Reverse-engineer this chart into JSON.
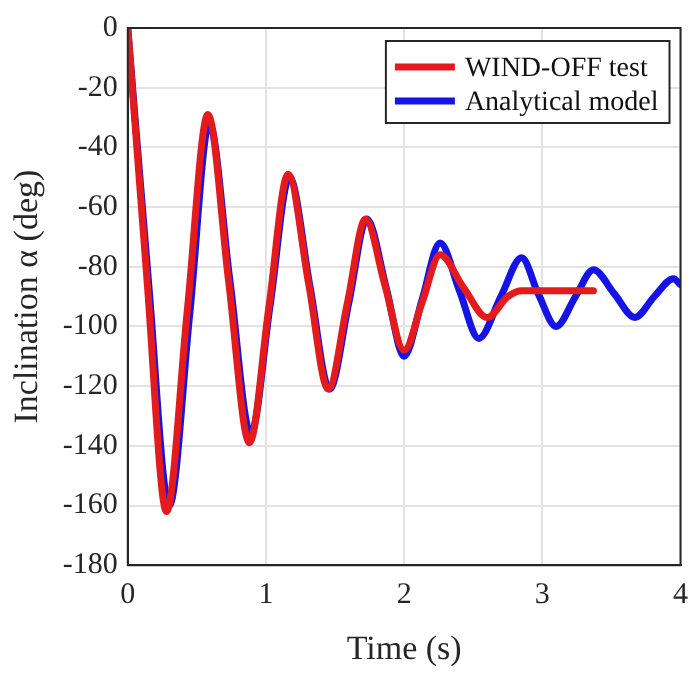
{
  "chart_data": {
    "type": "line",
    "xlabel": "Time (s)",
    "ylabel": "Inclination α (deg)",
    "xlim": [
      0,
      4
    ],
    "xticks": [
      0,
      1,
      2,
      3,
      4
    ],
    "ylim": [
      -180,
      0
    ],
    "yticks": [
      -180,
      -160,
      -140,
      -120,
      -100,
      -80,
      -60,
      -40,
      -20,
      0
    ],
    "grid": true,
    "legend": "top right",
    "marker": "none",
    "line_style": "solid",
    "series": [
      {
        "name": "WIND-OFF test",
        "color": "#e41a1c",
        "x": [
          0,
          0.14,
          0.28,
          0.43,
          0.58,
          0.73,
          0.88,
          1.02,
          1.16,
          1.31,
          1.45,
          1.59,
          1.72,
          1.86,
          2.0,
          2.13,
          2.26,
          2.43,
          2.6,
          2.75,
          2.85,
          3.37
        ],
        "values": [
          0,
          -85,
          -162,
          -95,
          -29,
          -85,
          -139,
          -94,
          -49,
          -86,
          -121,
          -92,
          -64,
          -86,
          -108,
          -92,
          -76,
          -87,
          -97,
          -90,
          -88,
          -88
        ]
      },
      {
        "name": "Analytical model",
        "color": "#1414e6",
        "x": [
          0,
          0.15,
          0.3,
          0.45,
          0.59,
          0.74,
          0.89,
          1.03,
          1.17,
          1.32,
          1.46,
          1.6,
          1.73,
          1.87,
          2.0,
          2.13,
          2.26,
          2.4,
          2.54,
          2.7,
          2.85,
          2.97,
          3.1,
          3.24,
          3.37,
          3.52,
          3.67,
          3.81,
          3.95,
          4
        ],
        "values": [
          0,
          -85,
          -160,
          -95,
          -32,
          -85,
          -136,
          -93,
          -50,
          -87,
          -121,
          -92,
          -64,
          -87,
          -110,
          -91,
          -72,
          -88,
          -104,
          -90,
          -77,
          -89,
          -100,
          -90,
          -81,
          -89,
          -97,
          -90,
          -84,
          -86
        ]
      }
    ]
  }
}
